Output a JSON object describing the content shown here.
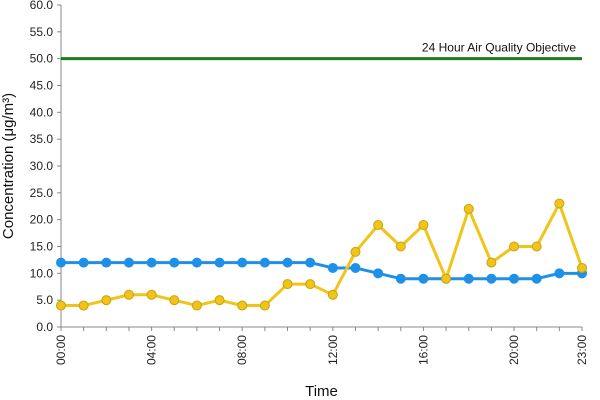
{
  "chart_data": {
    "type": "line",
    "xlabel": "Time",
    "ylabel": "Concentration (μg/m³)",
    "ylim": [
      0,
      60
    ],
    "y_ticks": [
      "0.0",
      "5.0",
      "10.0",
      "15.0",
      "20.0",
      "25.0",
      "30.0",
      "35.0",
      "40.0",
      "45.0",
      "50.0",
      "55.0",
      "60.0"
    ],
    "x_tick_labels": [
      "00:00",
      "04:00",
      "08:00",
      "12:00",
      "16:00",
      "20:00",
      "23:00"
    ],
    "x_tick_hours": [
      0,
      4,
      8,
      12,
      16,
      20,
      23
    ],
    "x_hours": [
      0,
      1,
      2,
      3,
      4,
      5,
      6,
      7,
      8,
      9,
      10,
      11,
      12,
      13,
      14,
      15,
      16,
      17,
      18,
      19,
      20,
      21,
      22,
      23
    ],
    "grid": false,
    "series": [
      {
        "color": "#1e90e8",
        "values": [
          12,
          12,
          12,
          12,
          12,
          12,
          12,
          12,
          12,
          12,
          12,
          12,
          11,
          11,
          10,
          9,
          9,
          9,
          9,
          9,
          9,
          9,
          10,
          10
        ]
      },
      {
        "color": "#f0c419",
        "values": [
          4,
          4,
          5,
          6,
          6,
          5,
          4,
          5,
          4,
          4,
          8,
          8,
          6,
          14,
          19,
          15,
          19,
          9,
          22,
          12,
          15,
          15,
          23,
          11
        ]
      }
    ],
    "reference_line": {
      "value": 50,
      "label": "24 Hour Air Quality Objective",
      "color": "#1e7a1e"
    }
  }
}
